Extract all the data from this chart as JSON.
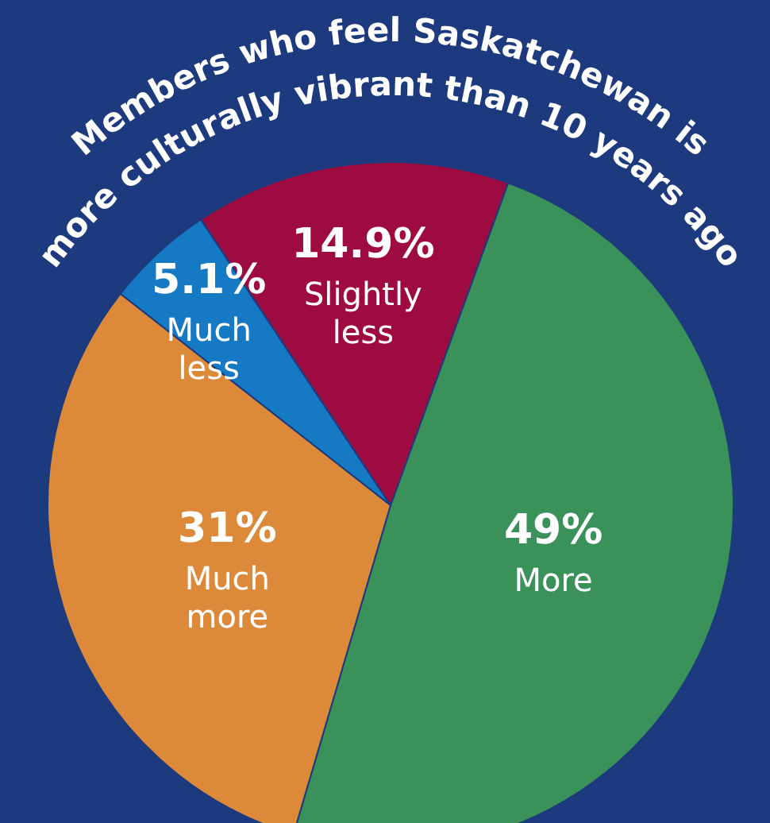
{
  "chart_data": {
    "type": "pie",
    "title": "Members who feel Saskatchewan is\nmore culturally vibrant than 10 years ago",
    "categories": [
      "More",
      "Much more",
      "Much less",
      "Slightly less"
    ],
    "values": [
      49,
      31,
      5.1,
      14.9
    ],
    "colors": [
      "#3a9159",
      "#dc8a3a",
      "#1679c4",
      "#9e0b40"
    ],
    "value_labels": [
      "49%",
      "31%",
      "5.1%",
      "14.9%"
    ]
  }
}
